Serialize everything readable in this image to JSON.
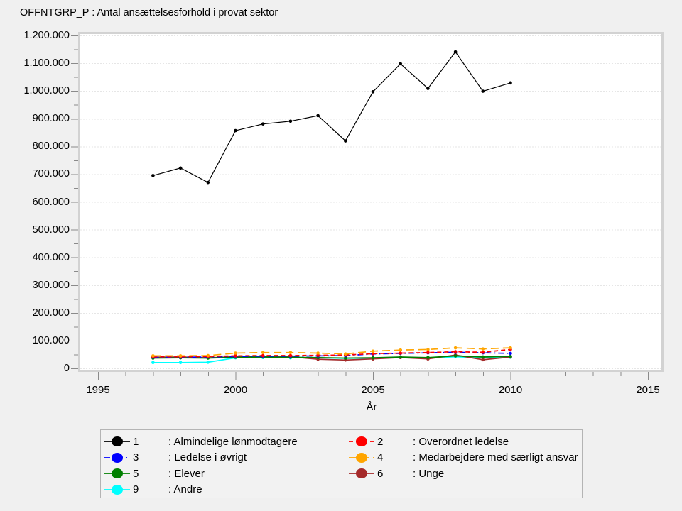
{
  "title": "OFFNTGRP_P : Antal ansættelsesforhold i provat sektor",
  "colors": {
    "page_background": "#f0f0f0",
    "plot_background": "#ffffff",
    "plot_frame": "#d2d2d2",
    "gridline": "#e6e6e6",
    "tick": "#8a8a8a",
    "legend_background": "#f2f2f2",
    "legend_border": "#b4b4b4"
  },
  "chart_data": {
    "type": "line",
    "title": "OFFNTGRP_P : Antal ansættelsesforhold i provat sektor",
    "xlabel": "År",
    "ylabel": "",
    "xlim": [
      1995,
      2015
    ],
    "ylim": [
      0,
      1200000
    ],
    "grid": "horizontal dotted lines at each 100.000",
    "legend_position": "bottom",
    "x_ticks_major": [
      1995,
      2000,
      2005,
      2010,
      2015
    ],
    "x_tick_labels": [
      "1995",
      "2000",
      "2005",
      "2010",
      "2015"
    ],
    "x_minor_step": 1,
    "y_major_step": 100000,
    "y_minor_step": 50000,
    "y_tick_labels_top_to_bottom": [
      "1.200.000",
      "1.100.000",
      "1.000.000",
      "900.000",
      "800.000",
      "700.000",
      "600.000",
      "500.000",
      "400.000",
      "300.000",
      "200.000",
      "100.000",
      "0"
    ],
    "x": [
      1997,
      1998,
      1999,
      2000,
      2001,
      2002,
      2003,
      2004,
      2005,
      2006,
      2007,
      2008,
      2009,
      2010
    ],
    "series": [
      {
        "id": "1",
        "name": "Almindelige lønmodtagere",
        "legend_label": ": Almindelige lønmodtagere",
        "color": "#000000",
        "dash": "solid",
        "values": [
          695000,
          722000,
          670000,
          857000,
          881000,
          891000,
          911000,
          820000,
          997000,
          1098000,
          1009000,
          1141000,
          999000,
          1029000
        ]
      },
      {
        "id": "2",
        "name": "Overordnet ledelse",
        "legend_label": ": Overordnet ledelse",
        "color": "#ff0000",
        "dash": "dash",
        "values": [
          42000,
          42000,
          43000,
          45000,
          46000,
          46000,
          47000,
          48000,
          53000,
          55000,
          57000,
          60000,
          58000,
          68000
        ]
      },
      {
        "id": "3",
        "name": "Ledelse i øvrigt",
        "legend_label": ": Ledelse i øvrigt",
        "color": "#0000ff",
        "dash": "dash-dot",
        "values": [
          40000,
          40000,
          41000,
          43000,
          44000,
          44000,
          45000,
          46000,
          52000,
          54000,
          56000,
          58000,
          56000,
          54000
        ]
      },
      {
        "id": "4",
        "name": "Medarbejdere med særligt ansvar",
        "legend_label": ": Medarbejdere med særligt ansvar",
        "color": "#ffa500",
        "dash": "long-dash",
        "values": [
          45000,
          45000,
          46000,
          55000,
          57000,
          57000,
          55000,
          52000,
          62000,
          66000,
          68000,
          74000,
          70000,
          74000
        ]
      },
      {
        "id": "5",
        "name": "Elever",
        "legend_label": ": Elever",
        "color": "#008000",
        "dash": "solid",
        "values": [
          37000,
          38000,
          37000,
          40000,
          41000,
          40000,
          39000,
          37000,
          38000,
          41000,
          39000,
          45000,
          41000,
          43000
        ]
      },
      {
        "id": "6",
        "name": "Unge",
        "legend_label": ": Unge",
        "color": "#a52a2a",
        "dash": "solid",
        "values": [
          40000,
          41000,
          38000,
          42000,
          43000,
          42000,
          33000,
          30000,
          34000,
          39000,
          34000,
          48000,
          31000,
          41000
        ]
      },
      {
        "id": "9",
        "name": "Andre",
        "legend_label": ": Andre",
        "color": "#00ffff",
        "dash": "solid",
        "values": [
          21000,
          21000,
          22000,
          38000,
          39000,
          38000,
          38000,
          36000,
          37000,
          39000,
          37000,
          42000,
          38000,
          40000
        ]
      }
    ]
  }
}
